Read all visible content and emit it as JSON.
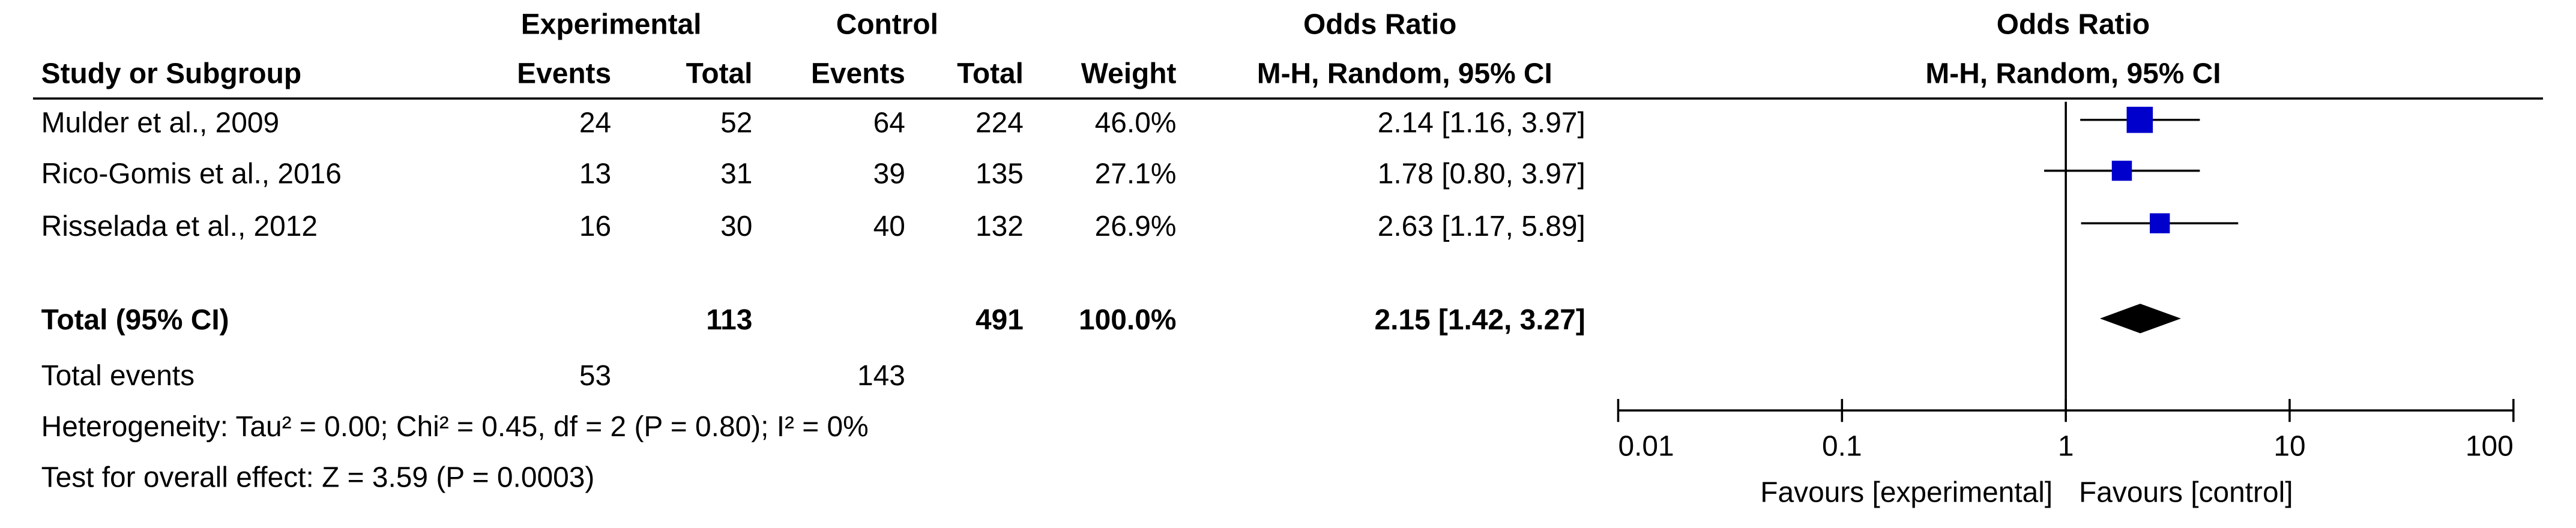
{
  "chart_data": {
    "type": "forest",
    "headers": {
      "experimental": "Experimental",
      "control": "Control",
      "odds_ratio_table": "Odds Ratio",
      "odds_ratio_plot": "Odds Ratio",
      "study": "Study or Subgroup",
      "exp_events": "Events",
      "exp_total": "Total",
      "ctrl_events": "Events",
      "ctrl_total": "Total",
      "weight": "Weight",
      "method_table": "M-H, Random, 95% CI",
      "method_plot": "M-H, Random, 95% CI"
    },
    "studies": [
      {
        "name": "Mulder et al., 2009",
        "exp_events": 24,
        "exp_total": 52,
        "ctrl_events": 64,
        "ctrl_total": 224,
        "weight": 46.0,
        "weight_label": "46.0%",
        "or": 2.14,
        "ci_low": 1.16,
        "ci_high": 3.97,
        "or_label": "2.14 [1.16, 3.97]"
      },
      {
        "name": "Rico-Gomis et al., 2016",
        "exp_events": 13,
        "exp_total": 31,
        "ctrl_events": 39,
        "ctrl_total": 135,
        "weight": 27.1,
        "weight_label": "27.1%",
        "or": 1.78,
        "ci_low": 0.8,
        "ci_high": 3.97,
        "or_label": "1.78 [0.80, 3.97]"
      },
      {
        "name": "Risselada et al., 2012",
        "exp_events": 16,
        "exp_total": 30,
        "ctrl_events": 40,
        "ctrl_total": 132,
        "weight": 26.9,
        "weight_label": "26.9%",
        "or": 2.63,
        "ci_low": 1.17,
        "ci_high": 5.89,
        "or_label": "2.63 [1.17, 5.89]"
      }
    ],
    "total": {
      "name": "Total (95% CI)",
      "exp_total": 113,
      "ctrl_total": 491,
      "weight_label": "100.0%",
      "or": 2.15,
      "ci_low": 1.42,
      "ci_high": 3.27,
      "or_label": "2.15 [1.42, 3.27]"
    },
    "total_events": {
      "name": "Total events",
      "exp_events": 53,
      "ctrl_events": 143
    },
    "heterogeneity": "Heterogeneity: Tau² = 0.00; Chi² = 0.45, df = 2 (P = 0.80); I² = 0%",
    "overall_effect": "Test for overall effect: Z = 3.59 (P = 0.0003)",
    "log_x": true,
    "xlim": [
      0.01,
      100
    ],
    "xticks": [
      0.01,
      0.1,
      1,
      10,
      100
    ],
    "reference_line": 1,
    "favours": [
      "Favours [experimental]",
      "Favours [control]"
    ],
    "marker_color": "#0000cc",
    "diamond_color": "#000000"
  }
}
